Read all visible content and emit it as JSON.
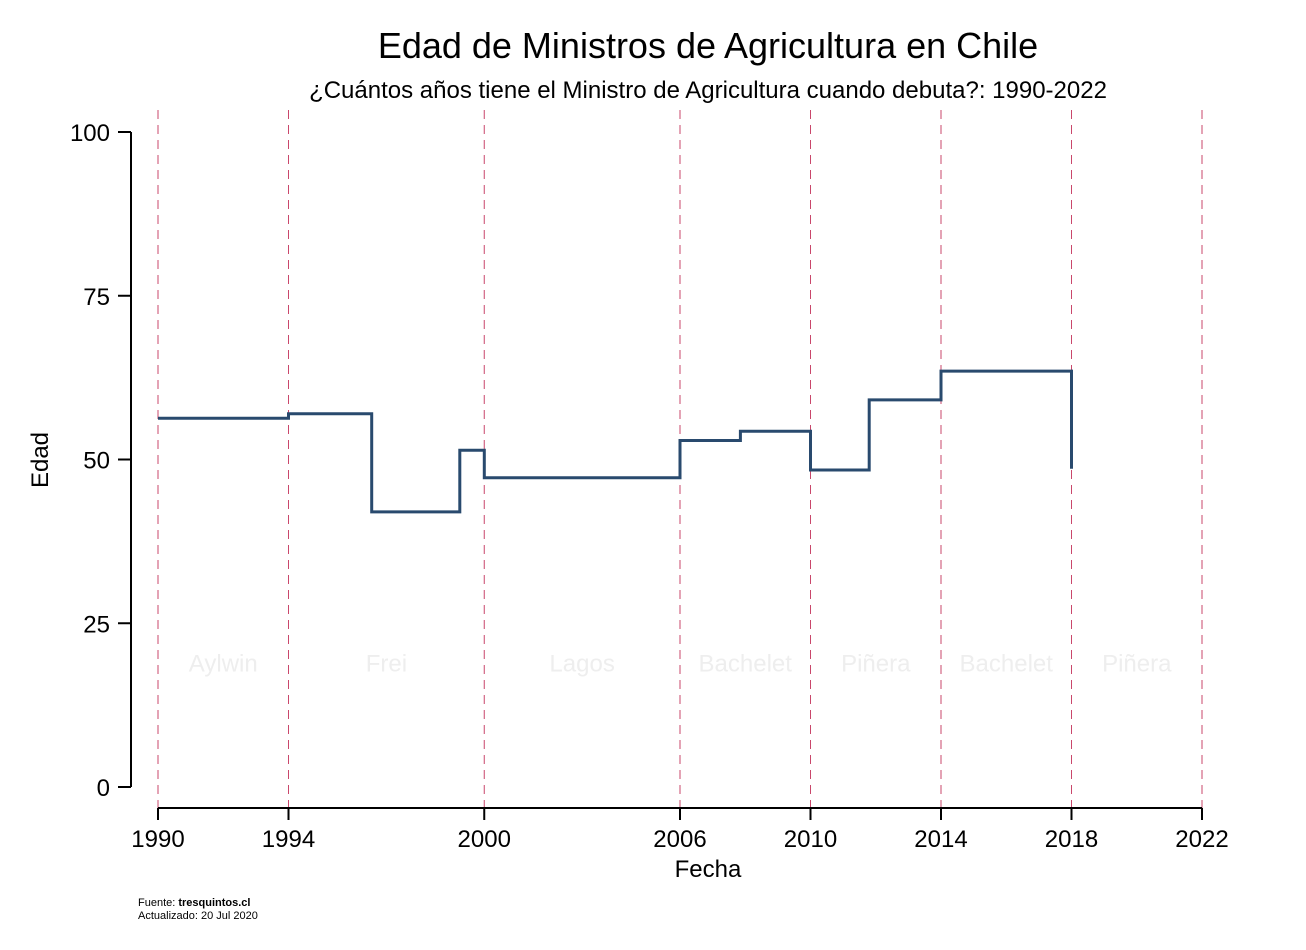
{
  "chart_data": {
    "type": "line",
    "step": true,
    "title": "Edad de Ministros de Agricultura en Chile",
    "subtitle": "¿Cuántos años tiene el Ministro de Agricultura cuando debuta?: 1990-2022",
    "xlabel": "Fecha",
    "ylabel": "Edad",
    "xlim": [
      1990,
      2022
    ],
    "ylim": [
      0,
      100
    ],
    "x_ticks": [
      "1990",
      "1994",
      "2000",
      "2006",
      "2010",
      "2014",
      "2018",
      "2022"
    ],
    "y_ticks": [
      "0",
      "25",
      "50",
      "75",
      "100"
    ],
    "series": [
      {
        "x": [
          1990.0,
          1994.0,
          1994.0,
          1996.55,
          1996.55,
          1999.25,
          1999.25,
          2000.0,
          2000.0,
          2006.0,
          2006.0,
          2007.85,
          2007.85,
          2010.0,
          2010.0,
          2011.8,
          2011.8,
          2014.0,
          2014.0,
          2018.0,
          2018.0
        ],
        "y": [
          56.3,
          56.3,
          57.0,
          57.0,
          42.0,
          42.0,
          51.4,
          51.4,
          47.2,
          47.2,
          52.9,
          52.9,
          54.3,
          54.3,
          48.4,
          48.4,
          59.1,
          59.1,
          63.5,
          63.5,
          48.6
        ],
        "color": "#294a6e"
      }
    ],
    "reference_lines": {
      "x": [
        1990,
        1994,
        2000,
        2006,
        2010,
        2014,
        2018,
        2022
      ],
      "color": "#c9476b",
      "style": "dashed"
    },
    "annotations": [
      {
        "text": "Aylwin",
        "x": 1992.0,
        "y": 19
      },
      {
        "text": "Frei",
        "x": 1997.0,
        "y": 19
      },
      {
        "text": "Lagos",
        "x": 2003.0,
        "y": 19
      },
      {
        "text": "Bachelet",
        "x": 2008.0,
        "y": 19
      },
      {
        "text": "Piñera",
        "x": 2012.0,
        "y": 19
      },
      {
        "text": "Bachelet",
        "x": 2016.0,
        "y": 19
      },
      {
        "text": "Piñera",
        "x": 2020.0,
        "y": 19
      }
    ],
    "grid": false,
    "legend": "none"
  },
  "footer": {
    "source_label": "Fuente: ",
    "source_value": "tresquintos.cl",
    "updated": "Actualizado: 20 Jul 2020"
  },
  "colors": {
    "line": "#294a6e",
    "reference": "#c9476b",
    "era_text": "#eeeeee"
  }
}
